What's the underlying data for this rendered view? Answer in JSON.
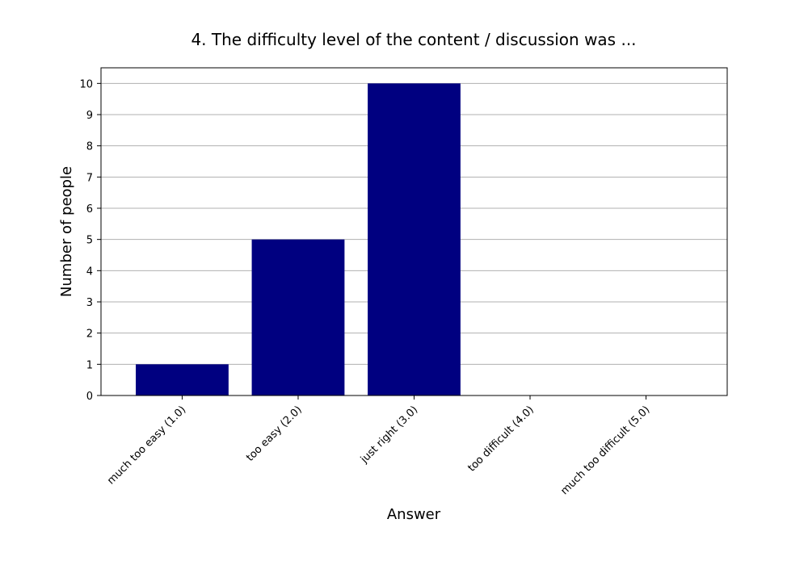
{
  "chart_data": {
    "type": "bar",
    "title": "4. The difficulty level of the content / discussion was ...",
    "xlabel": "Answer",
    "ylabel": "Number of people",
    "categories": [
      "much too easy (1.0)",
      "too easy (2.0)",
      "just right (3.0)",
      "too difficult (4.0)",
      "much too difficult (5.0)"
    ],
    "values": [
      1,
      5,
      10,
      0,
      0
    ],
    "ylim": [
      0,
      10.5
    ],
    "yticks": [
      "0",
      "1",
      "2",
      "3",
      "4",
      "5",
      "6",
      "7",
      "8",
      "9",
      "10"
    ],
    "grid": "horizontal",
    "bar_color": "#000080",
    "grid_color": "#b0b0b0"
  }
}
